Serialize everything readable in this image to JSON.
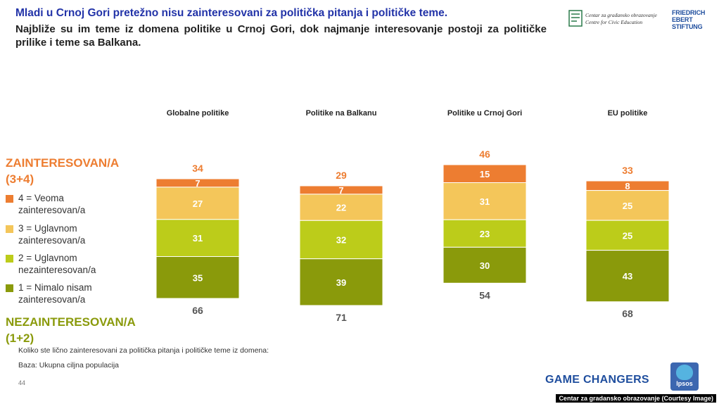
{
  "header": {
    "title": "Mladi u Crnoj Gori pretežno nisu zainteresovani za politička pitanja i političke teme.",
    "subtitle": "Najbliže su im teme iz domena politike u Crnoj Gori, dok najmanje interesovanje postoji za političke prilike i teme sa Balkana."
  },
  "logos": {
    "cge_line1": "Centar za građansko obrazovanje",
    "cge_line2": "Centre for Civic Education",
    "fes_line1": "FRIEDRICH",
    "fes_line2": "EBERT",
    "fes_line3": "STIFTUNG",
    "game_changers": "GAME CHANGERS",
    "ipsos": "Ipsos"
  },
  "legend": {
    "interested_title": "ZAINTERESOVAN/A",
    "interested_sub": "(3+4)",
    "items": [
      {
        "label1": "4 = Veoma",
        "label2": "zainteresovan/a",
        "color": "#ed7d31"
      },
      {
        "label1": "3 = Uglavnom",
        "label2": "zainteresovan/a",
        "color": "#f4c65a"
      },
      {
        "label1": "2 = Uglavnom",
        "label2": "nezainteresovan/a",
        "color": "#bccc1a"
      },
      {
        "label1": "1 = Nimalo nisam",
        "label2": "zainteresovan/a",
        "color": "#8a9a0b"
      }
    ],
    "uninterested_title": "NEZAINTERESOVAN/A",
    "uninterested_sub": "(1+2)"
  },
  "footer": {
    "question": "Koliko ste lično zainteresovani za politička pitanja i političke teme iz domena:",
    "base": "Baza: Ukupna ciljna populacija",
    "page": "44",
    "credit": "Centar za gradansko obrazovanje (Courtesy Image)"
  },
  "chart_data": {
    "type": "bar",
    "stacked": true,
    "categories": [
      "Globalne politike",
      "Politike na Balkanu",
      "Politike u Crnoj Gori",
      "EU politike"
    ],
    "series": [
      {
        "name": "4 = Veoma zainteresovan/a",
        "color": "#ed7d31",
        "values": [
          7,
          7,
          15,
          8
        ]
      },
      {
        "name": "3 = Uglavnom zainteresovan/a",
        "color": "#f4c65a",
        "values": [
          27,
          22,
          31,
          25
        ]
      },
      {
        "name": "2 = Uglavnom nezainteresovan/a",
        "color": "#bccc1a",
        "values": [
          31,
          32,
          23,
          25
        ]
      },
      {
        "name": "1 = Nimalo nisam zainteresovan/a",
        "color": "#8a9a0b",
        "values": [
          35,
          39,
          30,
          43
        ]
      }
    ],
    "totals_interested": [
      34,
      29,
      46,
      33
    ],
    "totals_uninterested": [
      66,
      71,
      54,
      68
    ],
    "legend_position": "left",
    "grid": false
  }
}
